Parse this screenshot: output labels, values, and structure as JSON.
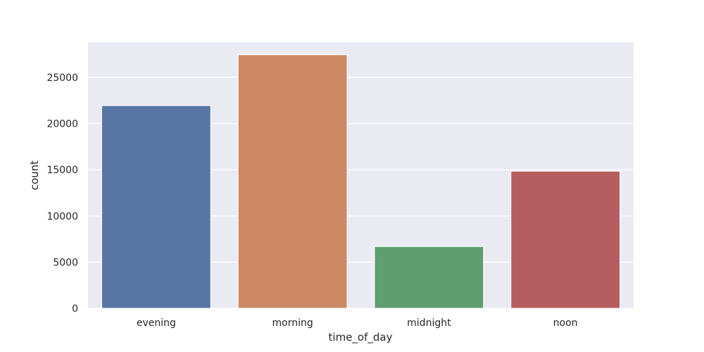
{
  "chart_data": {
    "type": "bar",
    "title": "",
    "xlabel": "time_of_day",
    "ylabel": "count",
    "categories": [
      "evening",
      "morning",
      "midnight",
      "noon"
    ],
    "values": [
      21950,
      27450,
      6700,
      14850
    ],
    "colors": [
      "#5875a4",
      "#cc8963",
      "#5f9e6e",
      "#b55d60"
    ],
    "ylim": [
      0,
      28800
    ],
    "yticks": [
      0,
      5000,
      10000,
      15000,
      20000,
      25000
    ],
    "grid": true,
    "plot_background": "#eaeaf2",
    "legend": "none"
  }
}
